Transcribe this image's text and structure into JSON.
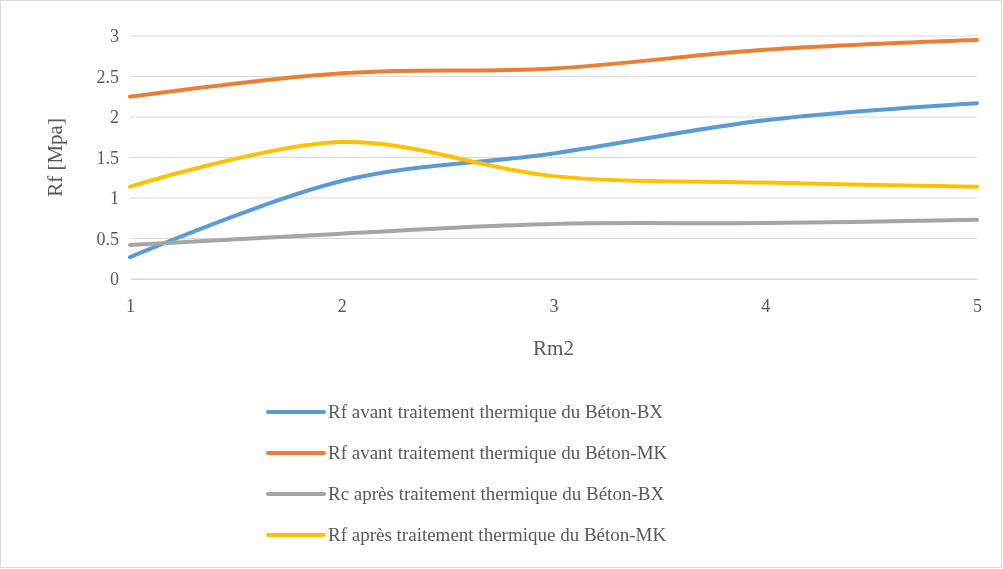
{
  "chart_data": {
    "type": "line",
    "xlabel": "Rm2",
    "ylabel": "Rf [Mpa]",
    "x": [
      1,
      2,
      3,
      4,
      5
    ],
    "xlim": [
      1,
      5
    ],
    "xticks": [
      1,
      2,
      3,
      4,
      5
    ],
    "ylim": [
      0,
      3
    ],
    "yticks": [
      0,
      0.5,
      1,
      1.5,
      2,
      2.5,
      3
    ],
    "grid": "y",
    "legend": "bottom",
    "marker": "none",
    "line_style": "solid",
    "series": [
      {
        "name": "Rf avant traitement thermique du Béton-BX",
        "color": "#5b9bd5",
        "values": [
          0.27,
          1.21,
          1.55,
          1.96,
          2.17
        ]
      },
      {
        "name": "Rf avant traitement thermique du Béton-MK",
        "color": "#ed7d31",
        "values": [
          2.25,
          2.54,
          2.6,
          2.83,
          2.95
        ]
      },
      {
        "name": "Rc après traitement thermique du Béton-BX",
        "color": "#a5a5a5",
        "values": [
          0.42,
          0.56,
          0.68,
          0.69,
          0.73
        ]
      },
      {
        "name": "Rf après traitement thermique du Béton-MK",
        "color": "#ffc000",
        "values": [
          1.14,
          1.69,
          1.27,
          1.19,
          1.14
        ]
      }
    ]
  }
}
